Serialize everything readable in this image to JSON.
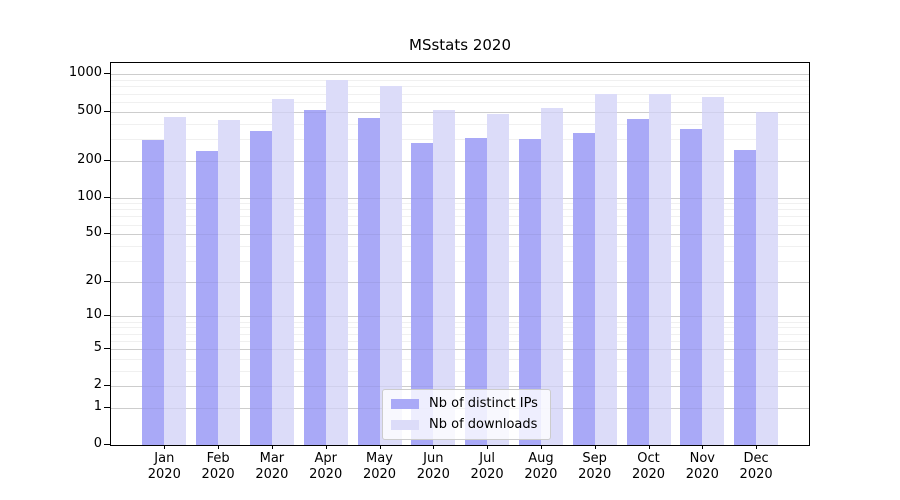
{
  "chart_data": {
    "type": "bar",
    "title": "MSstats 2020",
    "categories": [
      "Jan",
      "Feb",
      "Mar",
      "Apr",
      "May",
      "Jun",
      "Jul",
      "Aug",
      "Sep",
      "Oct",
      "Nov",
      "Dec"
    ],
    "category_year": "2020",
    "series": [
      {
        "name": "Nb of distinct IPs",
        "color": "#a9a9f7",
        "values": [
          295,
          240,
          348,
          512,
          446,
          277,
          304,
          297,
          338,
          433,
          360,
          246
        ]
      },
      {
        "name": "Nb of downloads",
        "color": "#dcdcf9",
        "values": [
          450,
          428,
          630,
          910,
          805,
          520,
          475,
          532,
          690,
          693,
          656,
          500
        ]
      }
    ],
    "yscale": "log10(value+1)",
    "yticks": [
      0,
      1,
      2,
      5,
      10,
      20,
      50,
      100,
      200,
      500,
      1000
    ],
    "yticks_minor": [
      3,
      4,
      6,
      7,
      8,
      9,
      30,
      40,
      60,
      70,
      80,
      90,
      300,
      400,
      600,
      700,
      800,
      900
    ],
    "ylim": [
      0,
      1220
    ],
    "xlabel": "",
    "ylabel": "",
    "grid": "horizontal",
    "legend_position": "inside-bottom-center",
    "gridline_color_major": "#d9d9d9",
    "gridline_color_minor": "#f0f0f0"
  }
}
